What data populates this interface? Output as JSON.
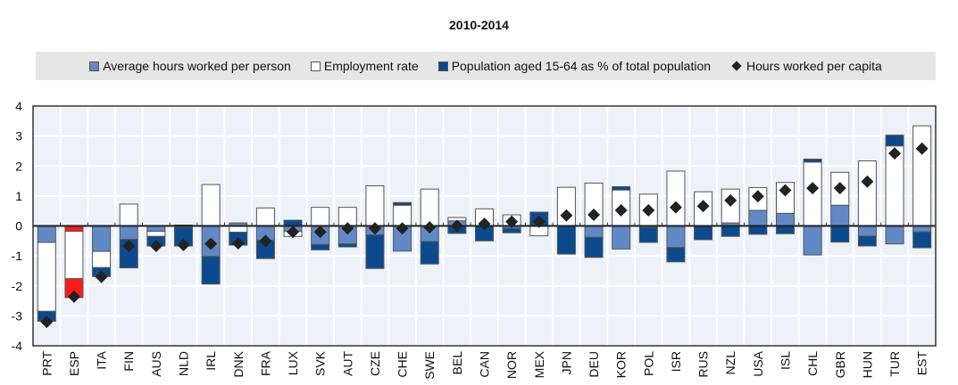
{
  "chart_data": {
    "type": "bar",
    "title": "2010-2014",
    "xlabel": "",
    "ylabel": "",
    "ylim": [
      -4,
      4
    ],
    "yticks": [
      4,
      3,
      2,
      1,
      0,
      -1,
      -2,
      -3,
      -4
    ],
    "grid": true,
    "legend_placement": "top",
    "stacked": true,
    "categories": [
      "PRT",
      "ESP",
      "ITA",
      "FIN",
      "AUS",
      "NLD",
      "IRL",
      "DNK",
      "FRA",
      "LUX",
      "SVK",
      "AUT",
      "CZE",
      "CHE",
      "SWE",
      "BEL",
      "CAN",
      "NOR",
      "MEX",
      "JPN",
      "DEU",
      "KOR",
      "POL",
      "ISR",
      "RUS",
      "NZL",
      "USA",
      "ISL",
      "CHL",
      "GBR",
      "HUN",
      "TUR",
      "EST"
    ],
    "highlight_category": "ESP",
    "series": [
      {
        "name": "Average hours worked per person",
        "kind": "bar",
        "color": "#6189c6",
        "values": [
          -0.55,
          -0.18,
          -0.85,
          -0.45,
          -0.18,
          -0.05,
          -1.02,
          0.1,
          -0.48,
          -0.18,
          -0.62,
          -0.6,
          -0.3,
          -0.84,
          -0.52,
          0.17,
          0,
          -0.08,
          0,
          0,
          -0.38,
          -0.77,
          -0.05,
          -0.72,
          0,
          0.1,
          0.52,
          0.42,
          -0.97,
          0.69,
          -0.34,
          -0.6,
          -0.2
        ]
      },
      {
        "name": "Employment rate",
        "kind": "bar",
        "color": "#ffffff",
        "values": [
          -2.3,
          -1.58,
          -0.54,
          0.73,
          -0.17,
          0.03,
          1.38,
          -0.21,
          0.6,
          -0.17,
          0.62,
          0.62,
          1.34,
          0.69,
          1.23,
          0.11,
          0.57,
          0.37,
          -0.33,
          1.29,
          1.43,
          1.2,
          1.06,
          1.83,
          1.14,
          1.13,
          0.76,
          1.03,
          2.13,
          1.1,
          2.17,
          2.67,
          3.34
        ]
      },
      {
        "name": "Population aged 15-64 as % of total population",
        "kind": "bar",
        "color": "#0b4a8c",
        "values": [
          -0.33,
          -0.63,
          -0.3,
          -0.95,
          -0.32,
          -0.62,
          -0.92,
          -0.43,
          -0.61,
          0.19,
          -0.18,
          -0.1,
          -1.12,
          0.09,
          -0.75,
          -0.25,
          -0.5,
          -0.15,
          0.46,
          -0.94,
          -0.67,
          0.11,
          -0.5,
          -0.48,
          -0.46,
          -0.35,
          -0.28,
          -0.26,
          0.1,
          -0.54,
          -0.33,
          0.36,
          -0.53
        ]
      },
      {
        "name": "Hours worked per capita",
        "kind": "marker",
        "color": "#222222",
        "values": [
          -3.2,
          -2.36,
          -1.7,
          -0.67,
          -0.67,
          -0.64,
          -0.6,
          -0.58,
          -0.5,
          -0.2,
          -0.2,
          -0.08,
          -0.08,
          -0.08,
          -0.05,
          0.0,
          0.07,
          0.14,
          0.14,
          0.35,
          0.37,
          0.52,
          0.52,
          0.62,
          0.66,
          0.85,
          0.99,
          1.19,
          1.26,
          1.26,
          1.48,
          2.42,
          2.58
        ]
      }
    ],
    "highlight_color": "#ff1a1a"
  }
}
